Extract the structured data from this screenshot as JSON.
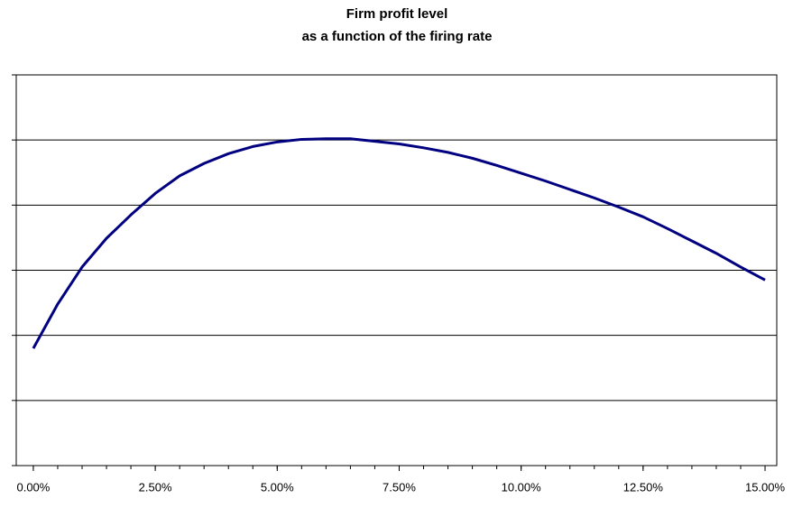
{
  "chart_data": {
    "type": "line",
    "title": [
      "Firm profit level",
      "as a function of the firing rate"
    ],
    "x": [
      0,
      0.5,
      1,
      1.5,
      2,
      2.5,
      3,
      3.5,
      4,
      4.5,
      5,
      5.5,
      6,
      6.5,
      7,
      7.5,
      8,
      8.5,
      9,
      9.5,
      10,
      10.5,
      11,
      11.5,
      12,
      12.5,
      13,
      13.5,
      14,
      14.5,
      15
    ],
    "series": [
      {
        "color": "#000080",
        "values": [
          1.8,
          2.48,
          3.05,
          3.49,
          3.85,
          4.18,
          4.45,
          4.64,
          4.79,
          4.9,
          4.97,
          5.01,
          5.02,
          5.02,
          4.98,
          4.94,
          4.88,
          4.81,
          4.72,
          4.61,
          4.49,
          4.37,
          4.24,
          4.11,
          3.97,
          3.82,
          3.64,
          3.45,
          3.26,
          3.05,
          2.85
        ]
      }
    ],
    "xlim": [
      -0.35,
      15.24
    ],
    "xticks": [
      {
        "value": 0,
        "label": "0.00%"
      },
      {
        "value": 2.5,
        "label": "2.50%"
      },
      {
        "value": 5,
        "label": "5.00%"
      },
      {
        "value": 7.5,
        "label": "7.50%"
      },
      {
        "value": 10,
        "label": "10.00%"
      },
      {
        "value": 12.5,
        "label": "12.50%"
      },
      {
        "value": 15,
        "label": "15.00%"
      }
    ],
    "ylim": [
      0,
      6
    ],
    "yticks": [
      0,
      1,
      2,
      3,
      4,
      5,
      6
    ],
    "grid": true
  }
}
